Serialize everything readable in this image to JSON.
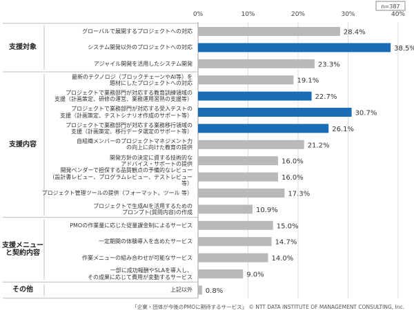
{
  "chart_data": {
    "type": "bar",
    "orientation": "horizontal",
    "sample_size": "n=387",
    "source": "「企業・団体が今後のPMOに期待するサービス」 © NTT DATA INSTITUTE OF MANAGEMENT CONSULTING, Inc.",
    "xlim": [
      0,
      40
    ],
    "xticks": [
      {
        "value": 0,
        "label": "0%"
      },
      {
        "value": 10,
        "label": "10%"
      },
      {
        "value": 20,
        "label": "20%"
      },
      {
        "value": 30,
        "label": "30%"
      },
      {
        "value": 40,
        "label": "40%"
      }
    ],
    "grid": true,
    "groups": [
      {
        "name": "支援対象",
        "categories": [
          "グローバルで展開するプロジェクトへの対応",
          "システム開発以外のプロジェクトへの対応",
          "アジャイル開発を活用したシステム開発"
        ],
        "values": [
          28.4,
          38.5,
          23.3
        ],
        "value_labels": [
          "28.4%",
          "38.5%",
          "23.3%"
        ],
        "colors": [
          "#b9b9b9",
          "#1b6cb6",
          "#b9b9b9"
        ]
      },
      {
        "name": "支援内容",
        "categories": [
          "最新のテクノロジ（ブロックチェーンやAI等）を\n題材にしたプロジェクトへの対応",
          "プロジェクトで業務部門が対応する教育訓練領域の\n支援（計画策定、研修の運営、業務運用習熟の支援等）",
          "プロジェクトで業務部門が対応する受入テストの\n支援（計画策定、テストシナリオ作成のサポート等）",
          "プロジェクトで業務部門が対応する業務移行領域の\n支援（計画策定、移行データ選定のサポート等）",
          "自組織メンバーのプロジェクトマネジメント力\nの向上に向けた教育の提供",
          "開発方針の決定に資する技術的な\nアドバイス・サポートの提供",
          "開発ベンダーで担保する品質観点の予備的なレビュー\n（設計書レビュー、プログラムレビュー、テストレビュー 等）",
          "プロジェクト管理ツールの提供（フォーマット、ツール 等）",
          "プロジェクトで生成AIを活用するための\nプロンプト(質問内容)の作成"
        ],
        "values": [
          19.1,
          22.7,
          30.7,
          26.1,
          21.2,
          16.0,
          16.0,
          17.3,
          10.9
        ],
        "value_labels": [
          "19.1%",
          "22.7%",
          "30.7%",
          "26.1%",
          "21.2%",
          "16.0%",
          "16.0%",
          "17.3%",
          "10.9%"
        ],
        "colors": [
          "#b9b9b9",
          "#1b6cb6",
          "#1b6cb6",
          "#1b6cb6",
          "#b9b9b9",
          "#b9b9b9",
          "#b9b9b9",
          "#b9b9b9",
          "#b9b9b9"
        ]
      },
      {
        "name": "支援メニュー\nと契約内容",
        "categories": [
          "PMOの作業量に応じた従量課金制によるサービス",
          "一定期間の体験導入を含めたサービス",
          "作業メニューの組み合わせが可能なサービス",
          "一部に成功報酬やSLAを導入し、\nその成果に応じて費用が変動するサービス"
        ],
        "values": [
          15.0,
          14.7,
          14.0,
          9.0
        ],
        "value_labels": [
          "15.0%",
          "14.7%",
          "14.0%",
          "9.0%"
        ],
        "colors": [
          "#b9b9b9",
          "#b9b9b9",
          "#b9b9b9",
          "#b9b9b9"
        ]
      },
      {
        "name": "その他",
        "categories": [
          "上記以外"
        ],
        "values": [
          0.8
        ],
        "value_labels": [
          "0.8%"
        ],
        "colors": [
          "#b9b9b9"
        ]
      }
    ]
  }
}
